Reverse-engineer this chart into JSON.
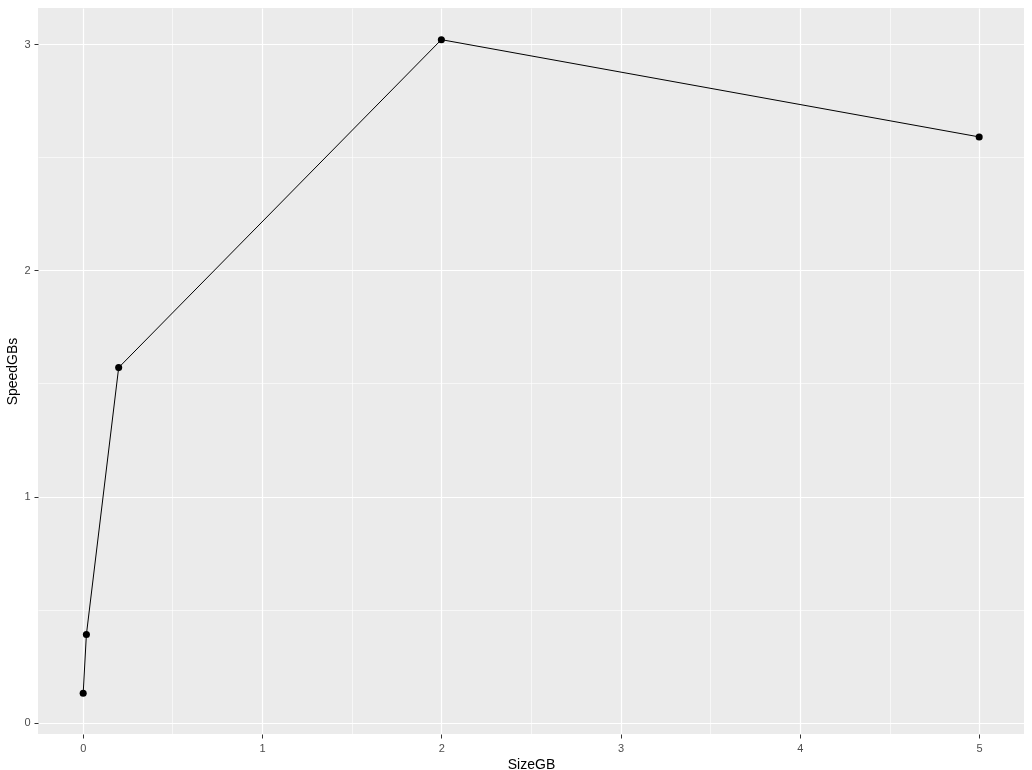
{
  "chart_data": {
    "type": "line",
    "xlabel": "SizeGB",
    "ylabel": "SpeedGBs",
    "x": [
      0.002,
      0.02,
      0.2,
      2,
      5
    ],
    "series": [
      {
        "color": "#000000",
        "values": [
          0.13,
          0.39,
          1.57,
          3.02,
          2.59
        ]
      }
    ],
    "xlim": [
      -0.25,
      5.25
    ],
    "ylim": [
      -0.05,
      3.16
    ],
    "xticks": [
      0,
      {
        "value": 0.5,
        "label": null
      },
      1,
      {
        "value": 1.5,
        "label": null
      },
      2,
      {
        "value": 2.5,
        "label": null
      },
      3,
      {
        "value": 3.5,
        "label": null
      },
      4,
      {
        "value": 4.5,
        "label": null
      },
      5
    ],
    "yticks": [
      0,
      {
        "value": 0.5,
        "label": null
      },
      1,
      {
        "value": 1.5,
        "label": null
      },
      2,
      {
        "value": 2.5,
        "label": null
      },
      3
    ],
    "grid": true,
    "marker": "circle",
    "line_style": "solid"
  }
}
